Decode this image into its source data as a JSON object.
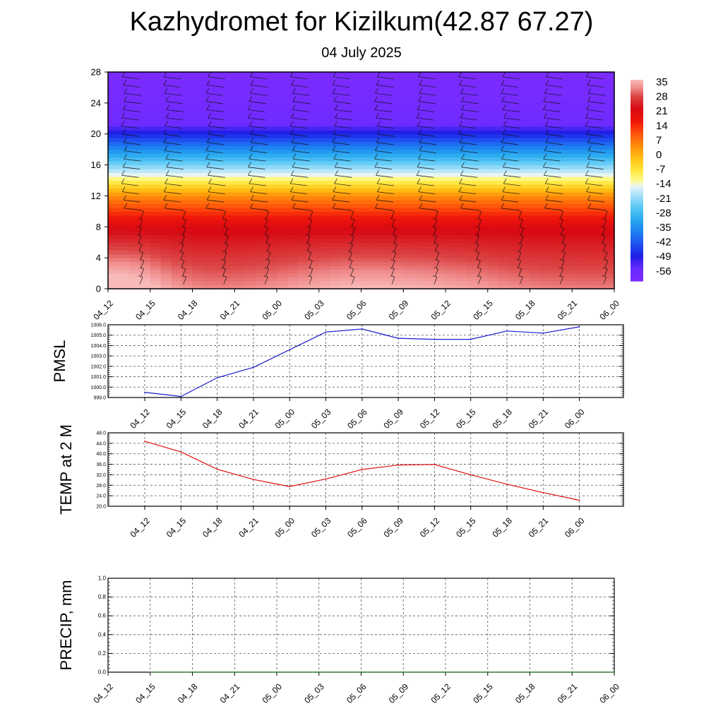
{
  "header": {
    "title": "Kazhydromet for Kizilkum(42.87 67.27)",
    "subtitle": "04 July 2025"
  },
  "colors": {
    "pmsl_line": "#1a1acc",
    "temp_line": "#e01010",
    "precip_line": "#2a7a2a",
    "colorbar_top": "#f6b3b3",
    "colorbar_bottom": "#7a2bff"
  },
  "chart_data": [
    {
      "type": "heatmap",
      "title": "",
      "xlabel": "",
      "ylabel": "",
      "ylim": [
        0,
        28
      ],
      "y_ticks": [
        "0",
        "4",
        "8",
        "12",
        "16",
        "20",
        "24",
        "28"
      ],
      "x_ticks": [
        "04_12",
        "04_15",
        "04_18",
        "04_21",
        "05_00",
        "05_03",
        "05_06",
        "05_09",
        "05_12",
        "05_15",
        "05_18",
        "05_21",
        "06_00"
      ],
      "colorbar_labels": [
        "35",
        "28",
        "21",
        "14",
        "7",
        "0",
        "-7",
        "-14",
        "-21",
        "-28",
        "-35",
        "-42",
        "-49",
        "-56"
      ],
      "colorbar_range": [
        -60,
        38
      ],
      "grid": false,
      "overlay": "wind barbs"
    },
    {
      "type": "line",
      "ylabel": "PMSL",
      "ylim": [
        999.0,
        1006.0
      ],
      "y_ticks": [
        "999.0",
        "1000.0",
        "1001.0",
        "1002.0",
        "1003.0",
        "1004.0",
        "1005.0",
        "1006.0"
      ],
      "categories": [
        "04_12",
        "04_15",
        "04_18",
        "04_21",
        "05_00",
        "05_03",
        "05_06",
        "05_09",
        "05_12",
        "05_15",
        "05_18",
        "05_21",
        "06_00"
      ],
      "series": [
        {
          "values": [
            999.5,
            999.1,
            1000.9,
            1001.9,
            1003.6,
            1005.3,
            1005.6,
            1004.7,
            1004.6,
            1004.6,
            1005.4,
            1005.2,
            1005.8
          ]
        }
      ],
      "grid": true
    },
    {
      "type": "line",
      "ylabel": "TEMP at 2 M",
      "ylim": [
        20.0,
        48.0
      ],
      "y_ticks": [
        "20.0",
        "24.0",
        "28.0",
        "32.0",
        "36.0",
        "40.0",
        "44.0",
        "48.0"
      ],
      "categories": [
        "04_12",
        "04_15",
        "04_18",
        "04_21",
        "05_00",
        "05_03",
        "05_06",
        "05_09",
        "05_12",
        "05_15",
        "05_18",
        "05_21",
        "06_00"
      ],
      "series": [
        {
          "values": [
            44.8,
            40.7,
            34.1,
            30.2,
            27.5,
            30.4,
            34.0,
            35.7,
            35.9,
            32.0,
            28.4,
            25.2,
            22.3
          ]
        }
      ],
      "grid": true
    },
    {
      "type": "line",
      "ylabel": "PRECIP, mm",
      "ylim": [
        0.0,
        1.0
      ],
      "y_ticks": [
        "0.0",
        "0.2",
        "0.4",
        "0.6",
        "0.8",
        "1.0"
      ],
      "x_ticks": [
        "04_12",
        "04_15",
        "04_18",
        "04_21",
        "05_00",
        "05_03",
        "05_06",
        "05_09",
        "05_12",
        "05_15",
        "05_18",
        "05_21",
        "06_00"
      ],
      "categories": [
        "04_15",
        "04_18",
        "04_21",
        "05_00",
        "05_03",
        "05_06",
        "05_09",
        "05_12",
        "05_15",
        "05_18",
        "05_21",
        "06_00"
      ],
      "series": [
        {
          "values": [
            0,
            0,
            0,
            0,
            0,
            0,
            0,
            0,
            0,
            0,
            0,
            0
          ]
        }
      ],
      "grid": true
    }
  ]
}
